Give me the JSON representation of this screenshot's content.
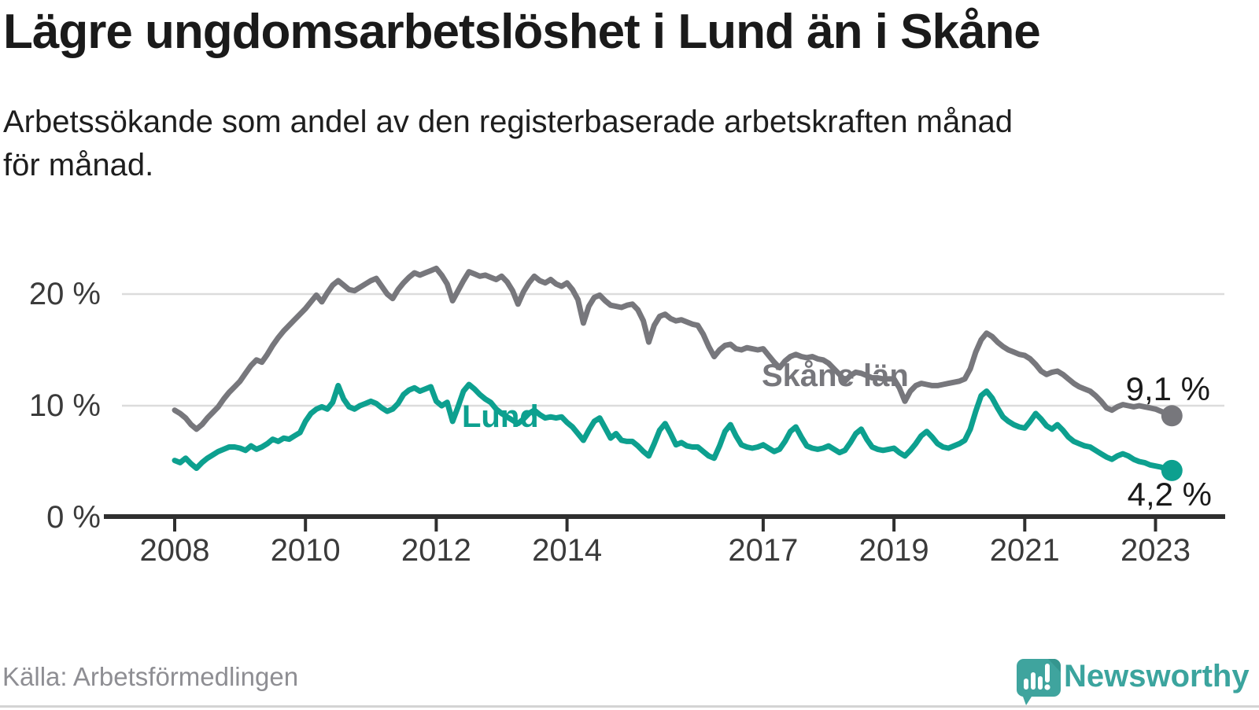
{
  "header": {
    "title": "Lägre ungdomsarbetslöshet i Lund än i Skåne",
    "subtitle": "Arbetssökande som andel av den registerbaserade arbetskraften månad för månad."
  },
  "chart_data": {
    "type": "line",
    "title": "Lägre ungdomsarbetslöshet i Lund än i Skåne",
    "subtitle": "Arbetssökande som andel av den registerbaserade arbetskraften månad för månad.",
    "xlabel": "",
    "ylabel": "",
    "ylim": [
      0,
      23.5
    ],
    "xlim": [
      2008,
      2023.4
    ],
    "grid": "horizontal",
    "legend_position": "inline-annotations",
    "x_unit": "monthly, decimal years",
    "y_ticks": [
      {
        "v": 0,
        "label": "0 %"
      },
      {
        "v": 10,
        "label": "10 %"
      },
      {
        "v": 20,
        "label": "20 %"
      }
    ],
    "x_ticks": [
      {
        "v": 2008,
        "label": "2008"
      },
      {
        "v": 2010,
        "label": "2010"
      },
      {
        "v": 2012,
        "label": "2012"
      },
      {
        "v": 2014,
        "label": "2014"
      },
      {
        "v": 2017,
        "label": "2017"
      },
      {
        "v": 2019,
        "label": "2019"
      },
      {
        "v": 2021,
        "label": "2021"
      },
      {
        "v": 2023,
        "label": "2023"
      }
    ],
    "series": [
      {
        "name": "Skåne län",
        "color": "#77777c",
        "end_label": "9,1 %",
        "end_value": 9.1,
        "start_year": 2008,
        "interval_months": 1,
        "values": [
          9.6,
          9.3,
          8.9,
          8.3,
          7.9,
          8.3,
          8.9,
          9.4,
          9.9,
          10.6,
          11.2,
          11.7,
          12.2,
          12.9,
          13.6,
          14.1,
          13.9,
          14.6,
          15.4,
          16.1,
          16.7,
          17.2,
          17.7,
          18.2,
          18.7,
          19.3,
          19.9,
          19.3,
          20.1,
          20.8,
          21.2,
          20.8,
          20.4,
          20.3,
          20.6,
          20.9,
          21.2,
          21.4,
          20.7,
          20.0,
          19.6,
          20.4,
          21.0,
          21.5,
          21.9,
          21.7,
          21.9,
          22.1,
          22.3,
          21.7,
          20.9,
          19.4,
          20.3,
          21.2,
          22.0,
          21.8,
          21.6,
          21.7,
          21.5,
          21.3,
          21.6,
          21.1,
          20.3,
          19.1,
          20.2,
          21.0,
          21.6,
          21.2,
          21.0,
          21.3,
          20.9,
          20.7,
          21.0,
          20.4,
          19.5,
          17.4,
          18.9,
          19.7,
          19.9,
          19.4,
          19.0,
          18.9,
          18.8,
          19.0,
          19.1,
          18.6,
          17.6,
          15.7,
          17.2,
          18.0,
          18.2,
          17.8,
          17.6,
          17.7,
          17.5,
          17.3,
          17.2,
          16.4,
          15.3,
          14.4,
          15.0,
          15.4,
          15.5,
          15.1,
          15.0,
          15.2,
          15.1,
          15.0,
          15.1,
          14.5,
          13.9,
          13.4,
          14.0,
          14.4,
          14.6,
          14.4,
          14.3,
          14.4,
          14.2,
          14.1,
          13.8,
          13.3,
          12.8,
          12.2,
          12.7,
          13.0,
          12.9,
          12.7,
          12.5,
          12.5,
          12.4,
          12.4,
          12.4,
          11.6,
          10.4,
          11.3,
          11.8,
          12.0,
          11.9,
          11.8,
          11.8,
          11.9,
          12.0,
          12.1,
          12.2,
          12.4,
          13.3,
          14.8,
          15.9,
          16.5,
          16.2,
          15.7,
          15.3,
          15.0,
          14.8,
          14.6,
          14.5,
          14.2,
          13.7,
          13.1,
          12.8,
          13.0,
          13.1,
          12.8,
          12.4,
          12.0,
          11.7,
          11.5,
          11.3,
          10.9,
          10.4,
          9.8,
          9.6,
          9.9,
          10.1,
          10.0,
          9.9,
          10.0,
          9.9,
          9.8,
          9.7,
          9.5,
          9.3,
          9.1
        ]
      },
      {
        "name": "Lund",
        "color": "#0da08f",
        "end_label": "4,2 %",
        "end_value": 4.2,
        "start_year": 2008,
        "interval_months": 1,
        "values": [
          5.1,
          4.9,
          5.3,
          4.8,
          4.4,
          4.9,
          5.3,
          5.6,
          5.9,
          6.1,
          6.3,
          6.3,
          6.2,
          6.0,
          6.4,
          6.1,
          6.3,
          6.6,
          7.0,
          6.8,
          7.1,
          7.0,
          7.3,
          7.6,
          8.6,
          9.3,
          9.7,
          9.9,
          9.7,
          10.3,
          11.8,
          10.6,
          9.9,
          9.7,
          10.0,
          10.2,
          10.4,
          10.2,
          9.8,
          9.5,
          9.7,
          10.2,
          11.0,
          11.4,
          11.6,
          11.3,
          11.5,
          11.7,
          10.4,
          10.0,
          10.3,
          8.6,
          9.9,
          11.3,
          11.9,
          11.5,
          11.0,
          10.6,
          10.3,
          9.7,
          9.3,
          9.0,
          8.7,
          8.4,
          8.8,
          9.3,
          9.6,
          9.2,
          8.9,
          9.0,
          8.9,
          9.0,
          8.5,
          8.1,
          7.5,
          6.9,
          7.8,
          8.6,
          8.9,
          8.0,
          7.1,
          7.5,
          6.9,
          6.8,
          6.8,
          6.4,
          5.9,
          5.5,
          6.6,
          7.8,
          8.4,
          7.5,
          6.5,
          6.7,
          6.4,
          6.3,
          6.3,
          5.9,
          5.5,
          5.3,
          6.4,
          7.7,
          8.3,
          7.3,
          6.5,
          6.3,
          6.2,
          6.3,
          6.5,
          6.2,
          5.9,
          6.1,
          6.8,
          7.7,
          8.1,
          7.2,
          6.4,
          6.2,
          6.1,
          6.2,
          6.4,
          6.1,
          5.8,
          6.0,
          6.7,
          7.5,
          7.9,
          7.0,
          6.3,
          6.1,
          6.0,
          6.1,
          6.2,
          5.8,
          5.5,
          6.0,
          6.6,
          7.3,
          7.7,
          7.2,
          6.6,
          6.3,
          6.2,
          6.4,
          6.6,
          6.9,
          7.9,
          9.5,
          10.9,
          11.3,
          10.7,
          9.8,
          9.0,
          8.6,
          8.3,
          8.1,
          8.0,
          8.6,
          9.3,
          8.8,
          8.2,
          7.9,
          8.3,
          7.8,
          7.2,
          6.8,
          6.6,
          6.4,
          6.3,
          6.0,
          5.7,
          5.4,
          5.2,
          5.5,
          5.7,
          5.5,
          5.2,
          5.0,
          4.9,
          4.7,
          4.6,
          4.5,
          4.3,
          4.2
        ]
      }
    ],
    "annotations": [
      {
        "text": "Skåne län",
        "color": "#77777c",
        "near_year": 2018.2,
        "near_value": 12.7
      },
      {
        "text": "Lund",
        "color": "#0da08f",
        "near_year": 2012.6,
        "near_value": 9.2
      }
    ]
  },
  "footer": {
    "source": "Källa: Arbetsförmedlingen",
    "brand": "Newsworthy",
    "brand_color": "#3ba49e"
  }
}
